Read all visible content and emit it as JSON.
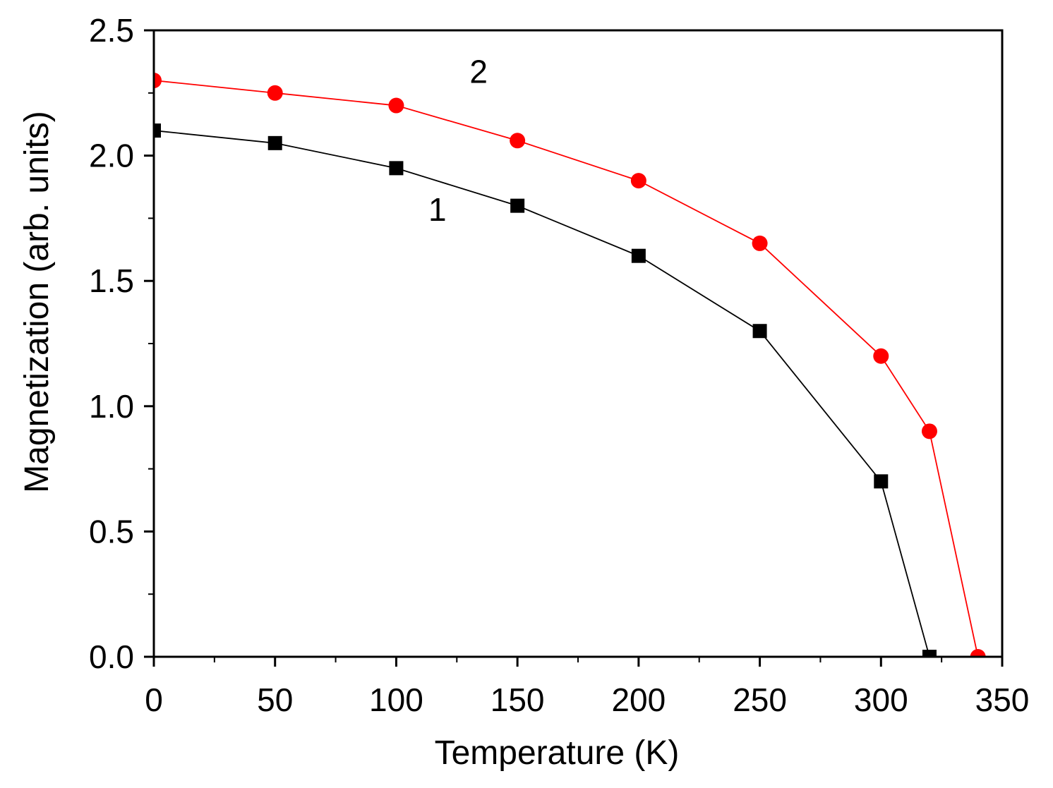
{
  "chart_data": {
    "type": "line",
    "title": "",
    "xlabel": "Temperature (K)",
    "ylabel": "Magnetization (arb. units)",
    "xlim": [
      0,
      350
    ],
    "ylim": [
      0,
      2.5
    ],
    "xticks": [
      0,
      50,
      100,
      150,
      200,
      250,
      300,
      350
    ],
    "xtick_labels": [
      "0",
      "50",
      "100",
      "150",
      "200",
      "250",
      "300",
      "350"
    ],
    "yticks": [
      0,
      0.5,
      1.0,
      1.5,
      2.0,
      2.5
    ],
    "ytick_labels": [
      "0.0",
      "0.5",
      "1.0",
      "1.5",
      "2.0",
      "2.5"
    ],
    "grid": false,
    "series": [
      {
        "name": "1",
        "marker": "square",
        "color": "#000000",
        "x": [
          0,
          50,
          100,
          150,
          200,
          250,
          300,
          320
        ],
        "y": [
          2.1,
          2.05,
          1.95,
          1.8,
          1.6,
          1.3,
          0.7,
          0.0
        ],
        "annotation": {
          "text": "1",
          "x": 117,
          "y": 1.74
        }
      },
      {
        "name": "2",
        "marker": "circle",
        "color": "#ff0000",
        "x": [
          0,
          50,
          100,
          150,
          200,
          250,
          300,
          320,
          340
        ],
        "y": [
          2.3,
          2.25,
          2.2,
          2.06,
          1.9,
          1.65,
          1.2,
          0.9,
          0.0
        ],
        "annotation": {
          "text": "2",
          "x": 134,
          "y": 2.29
        }
      }
    ]
  }
}
